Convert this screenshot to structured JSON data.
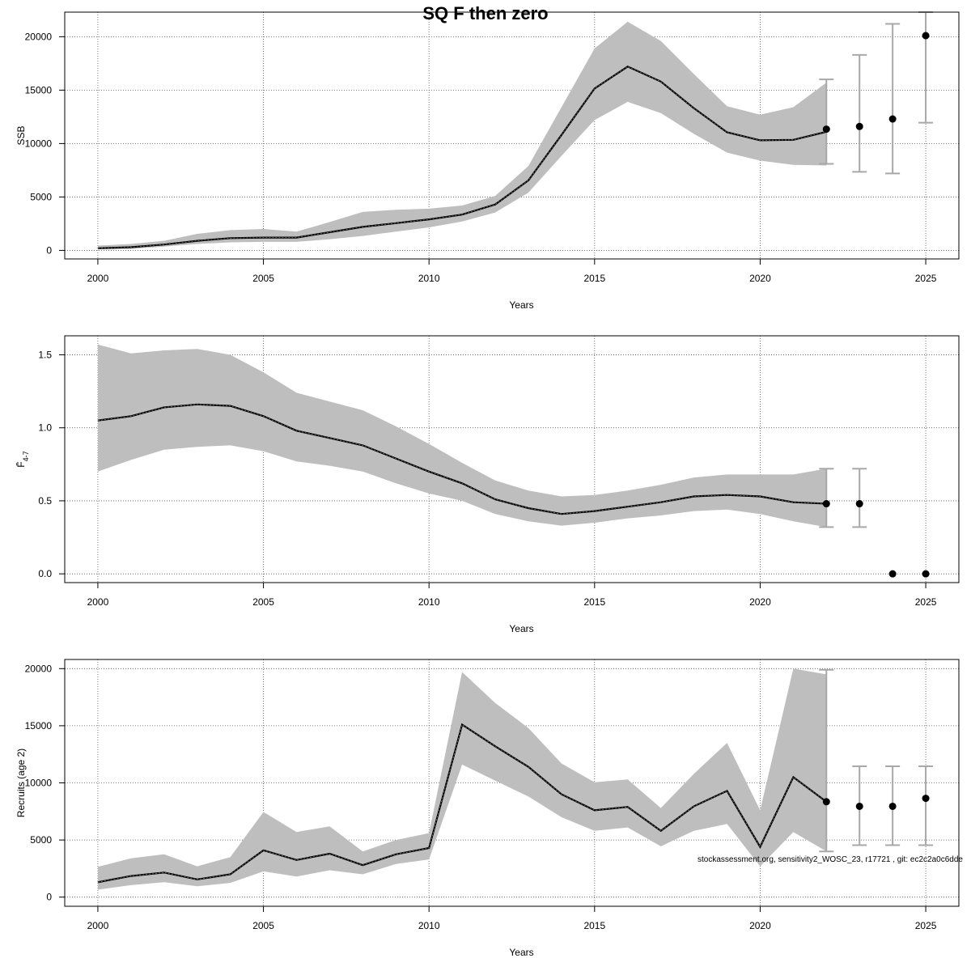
{
  "title": "SQ F then zero",
  "footnote": "stockassessment.org, sensitivity2_WOSC_23, r17721 , git: ec2c2a0c6dde",
  "colors": {
    "band": "#bebebe",
    "errorbar": "#a8a8a8",
    "line": "#000000",
    "point": "#000000",
    "grid": "#555555"
  },
  "chart_data": [
    {
      "type": "area",
      "xlabel": "Years",
      "ylabel": "SSB",
      "xlim": [
        1999,
        2026
      ],
      "ylim": [
        -800,
        22300
      ],
      "xticks": [
        2000,
        2005,
        2010,
        2015,
        2020,
        2025
      ],
      "yticks": [
        0,
        5000,
        10000,
        15000,
        20000
      ],
      "grid": true,
      "historic": {
        "x": [
          2000,
          2001,
          2002,
          2003,
          2004,
          2005,
          2006,
          2007,
          2008,
          2009,
          2010,
          2011,
          2012,
          2013,
          2014,
          2015,
          2016,
          2017,
          2018,
          2019,
          2020,
          2021,
          2022
        ],
        "estimate": [
          200,
          300,
          550,
          900,
          1150,
          1200,
          1200,
          1700,
          2200,
          2550,
          2900,
          3350,
          4300,
          6550,
          10800,
          15150,
          17200,
          15800,
          13300,
          11050,
          10300,
          10350,
          11100
        ],
        "low": [
          100,
          150,
          350,
          600,
          750,
          800,
          800,
          1050,
          1350,
          1750,
          2150,
          2700,
          3550,
          5400,
          8850,
          12200,
          13900,
          12850,
          10900,
          9150,
          8400,
          8000,
          7950
        ],
        "high": [
          450,
          600,
          900,
          1550,
          1900,
          2000,
          1750,
          2650,
          3600,
          3800,
          3900,
          4200,
          5100,
          7900,
          13400,
          18900,
          21400,
          19600,
          16500,
          13500,
          12700,
          13400,
          15700
        ]
      },
      "forecast": {
        "x": [
          2022,
          2023,
          2024,
          2025
        ],
        "estimate": [
          11350,
          11600,
          12300,
          20100
        ],
        "low": [
          8100,
          7350,
          7200,
          11950
        ],
        "high": [
          16000,
          18300,
          21200,
          22300
        ]
      }
    },
    {
      "type": "area",
      "xlabel": "Years",
      "ylabel": "F̄",
      "ylabel_sub": "4-7",
      "xlim": [
        1999,
        2026
      ],
      "ylim": [
        -0.06,
        1.63
      ],
      "xticks": [
        2000,
        2005,
        2010,
        2015,
        2020,
        2025
      ],
      "yticks": [
        0.0,
        0.5,
        1.0,
        1.5
      ],
      "ytick_labels": [
        "0.0",
        "0.5",
        "1.0",
        "1.5"
      ],
      "grid": true,
      "historic": {
        "x": [
          2000,
          2001,
          2002,
          2003,
          2004,
          2005,
          2006,
          2007,
          2008,
          2009,
          2010,
          2011,
          2012,
          2013,
          2014,
          2015,
          2016,
          2017,
          2018,
          2019,
          2020,
          2021,
          2022
        ],
        "estimate": [
          1.05,
          1.08,
          1.14,
          1.16,
          1.15,
          1.08,
          0.98,
          0.93,
          0.88,
          0.79,
          0.7,
          0.62,
          0.51,
          0.45,
          0.41,
          0.43,
          0.46,
          0.49,
          0.53,
          0.54,
          0.53,
          0.49,
          0.48
        ],
        "low": [
          0.7,
          0.78,
          0.85,
          0.87,
          0.88,
          0.84,
          0.77,
          0.74,
          0.7,
          0.62,
          0.55,
          0.5,
          0.41,
          0.36,
          0.33,
          0.35,
          0.38,
          0.4,
          0.43,
          0.44,
          0.41,
          0.36,
          0.32
        ],
        "high": [
          1.57,
          1.51,
          1.53,
          1.54,
          1.5,
          1.38,
          1.24,
          1.18,
          1.12,
          1.01,
          0.89,
          0.76,
          0.64,
          0.57,
          0.53,
          0.54,
          0.57,
          0.61,
          0.66,
          0.68,
          0.68,
          0.68,
          0.72
        ]
      },
      "forecast": {
        "x": [
          2022,
          2023,
          2024,
          2025
        ],
        "estimate": [
          0.48,
          0.48,
          0.0,
          0.0
        ],
        "low": [
          0.32,
          0.32,
          null,
          null
        ],
        "high": [
          0.72,
          0.72,
          null,
          null
        ]
      }
    },
    {
      "type": "area",
      "xlabel": "Years",
      "ylabel": "Recruits (age 2)",
      "xlim": [
        1999,
        2026
      ],
      "ylim": [
        -800,
        20800
      ],
      "xticks": [
        2000,
        2005,
        2010,
        2015,
        2020,
        2025
      ],
      "yticks": [
        0,
        5000,
        10000,
        15000,
        20000
      ],
      "grid": true,
      "historic": {
        "x": [
          2000,
          2001,
          2002,
          2003,
          2004,
          2005,
          2006,
          2007,
          2008,
          2009,
          2010,
          2011,
          2012,
          2013,
          2014,
          2015,
          2016,
          2017,
          2018,
          2019,
          2020,
          2021,
          2022
        ],
        "estimate": [
          1300,
          1850,
          2150,
          1550,
          2000,
          4100,
          3250,
          3800,
          2800,
          3750,
          4300,
          15100,
          13200,
          11400,
          9000,
          7600,
          7900,
          5800,
          7950,
          9300,
          4400,
          10500,
          8350
        ],
        "low": [
          650,
          1050,
          1300,
          950,
          1250,
          2250,
          1800,
          2350,
          2000,
          2900,
          3300,
          11600,
          10200,
          8800,
          7000,
          5800,
          6100,
          4450,
          5800,
          6400,
          2700,
          5700,
          4000
        ],
        "high": [
          2650,
          3400,
          3750,
          2700,
          3500,
          7450,
          5700,
          6200,
          4000,
          5000,
          5600,
          19700,
          17000,
          14800,
          11700,
          10050,
          10300,
          7800,
          10800,
          13500,
          7600,
          20000,
          19500
        ]
      },
      "forecast": {
        "x": [
          2022,
          2023,
          2024,
          2025
        ],
        "estimate": [
          8350,
          7950,
          7950,
          8650
        ],
        "low": [
          4000,
          4550,
          4550,
          4550
        ],
        "high": [
          19900,
          11450,
          11450,
          11450
        ]
      }
    }
  ]
}
